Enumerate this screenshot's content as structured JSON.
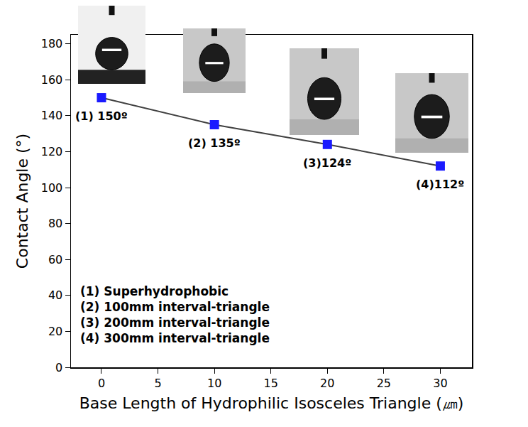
{
  "chart_data": {
    "type": "line",
    "x": [
      0,
      10,
      20,
      30
    ],
    "values": [
      150,
      135,
      124,
      112
    ],
    "value_labels": [
      "(1) 150º",
      "(2) 135º",
      "(3)124º",
      "(4)112º"
    ],
    "data_labels": true,
    "color": "#1a1aff",
    "marker": "square",
    "line_style": "solid",
    "xlabel": "Base Length of Hydrophilic Isosceles Triangle (㎛)",
    "ylabel": "Contact Angle (°)",
    "xlim": [
      -2.7,
      32.8
    ],
    "ylim": [
      0,
      185
    ],
    "xticks": [
      0,
      5,
      10,
      15,
      20,
      25,
      30
    ],
    "yticks": [
      0,
      20,
      40,
      60,
      80,
      100,
      120,
      140,
      160,
      180
    ],
    "grid": false,
    "annotations": [
      "(1) Superhydrophobic",
      "(2) 100mm interval-triangle",
      "(3) 200mm interval-triangle",
      "(4) 300mm interval-triangle"
    ]
  }
}
